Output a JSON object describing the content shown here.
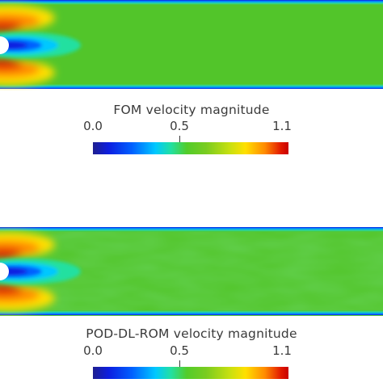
{
  "panels": [
    {
      "id": "fom",
      "colorbar": {
        "title": "FOM velocity magnitude",
        "ticks": [
          "0.0",
          "0.5",
          "1.1"
        ]
      }
    },
    {
      "id": "pod-dl-rom",
      "colorbar": {
        "title": "POD-DL-ROM velocity magnitude",
        "ticks": [
          "0.0",
          "0.5",
          "1.1"
        ]
      }
    }
  ],
  "colormap": [
    "#1f1f8f",
    "#0d1ee0",
    "#0060ff",
    "#00c8ff",
    "#22e0a0",
    "#52cc2a",
    "#7acc20",
    "#c8e010",
    "#ffe000",
    "#ff8a00",
    "#e21a00",
    "#c80000"
  ],
  "field_background_color": "#52c52a"
}
